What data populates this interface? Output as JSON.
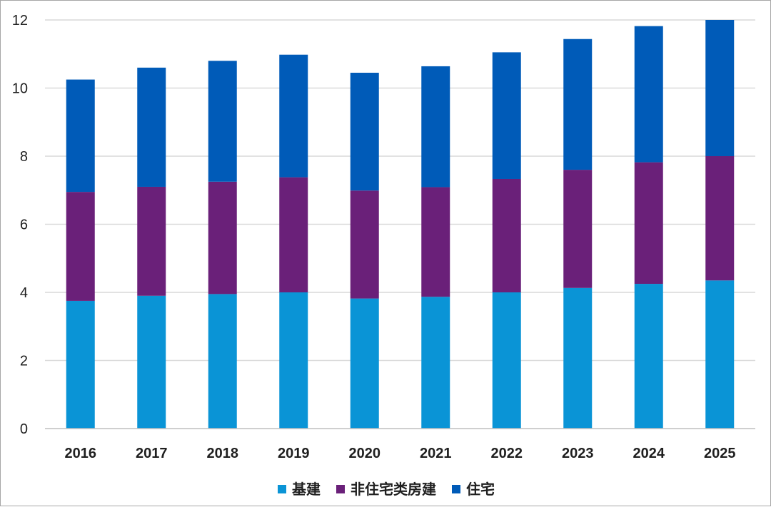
{
  "chart_data": {
    "type": "bar",
    "stacked": true,
    "categories": [
      "2016",
      "2017",
      "2018",
      "2019",
      "2020",
      "2021",
      "2022",
      "2023",
      "2024",
      "2025"
    ],
    "series": [
      {
        "name": "基建",
        "color": "#0a94d6",
        "values": [
          3.75,
          3.9,
          3.95,
          4.0,
          3.82,
          3.87,
          4.0,
          4.13,
          4.25,
          4.35
        ]
      },
      {
        "name": "非住宅类房建",
        "color": "#6a2079",
        "values": [
          3.2,
          3.2,
          3.3,
          3.38,
          3.17,
          3.22,
          3.33,
          3.47,
          3.57,
          3.65
        ]
      },
      {
        "name": "住宅",
        "color": "#005bb8",
        "values": [
          3.3,
          3.5,
          3.55,
          3.6,
          3.46,
          3.55,
          3.72,
          3.84,
          4.0,
          4.0
        ]
      }
    ],
    "ylim": [
      0,
      12
    ],
    "yticks": [
      "0",
      "2",
      "4",
      "6",
      "8",
      "10",
      "12"
    ],
    "grid": true,
    "legend_position": "bottom"
  }
}
